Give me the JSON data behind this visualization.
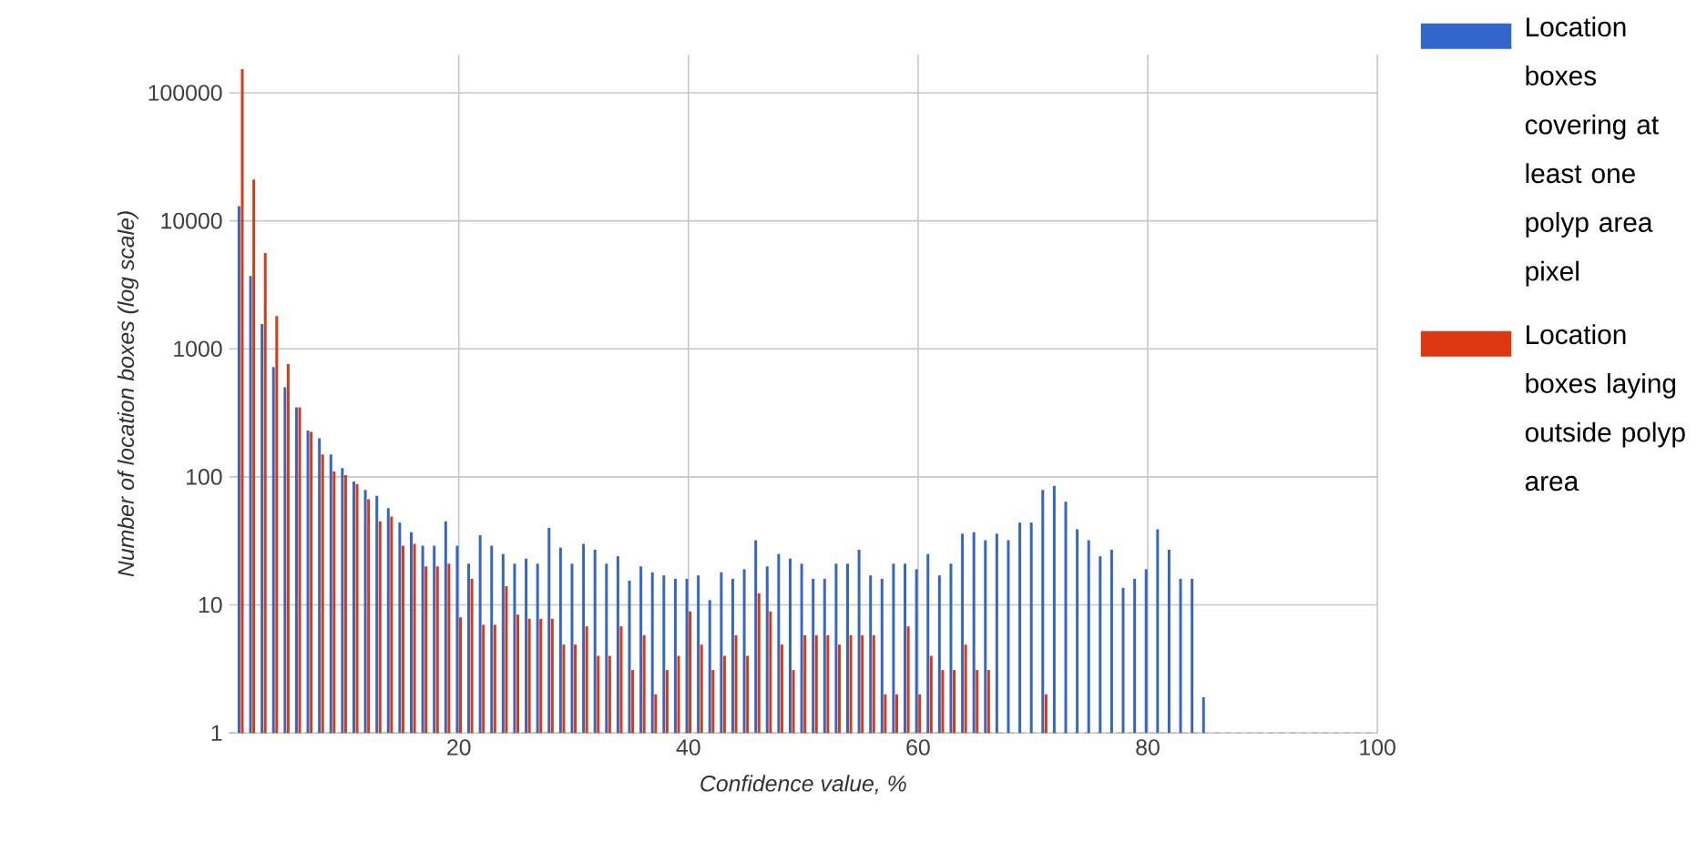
{
  "chart_data": {
    "type": "bar",
    "xlabel": "Confidence value, %",
    "ylabel": "Number of location boxes (log scale)",
    "x": [
      1,
      2,
      3,
      4,
      5,
      6,
      7,
      8,
      9,
      10,
      11,
      12,
      13,
      14,
      15,
      16,
      17,
      18,
      19,
      20,
      21,
      22,
      23,
      24,
      25,
      26,
      27,
      28,
      29,
      30,
      31,
      32,
      33,
      34,
      35,
      36,
      37,
      38,
      39,
      40,
      41,
      42,
      43,
      44,
      45,
      46,
      47,
      48,
      49,
      50,
      51,
      52,
      53,
      54,
      55,
      56,
      57,
      58,
      59,
      60,
      61,
      62,
      63,
      64,
      65,
      66,
      67,
      68,
      69,
      70,
      71,
      72,
      73,
      74,
      75,
      76,
      77,
      78,
      79,
      80,
      81,
      82,
      83,
      84,
      85
    ],
    "series": [
      {
        "name": "Location boxes covering at least one polyp area pixel",
        "color": "#3366cc",
        "values": [
          13000,
          3700,
          1560,
          720,
          500,
          350,
          230,
          200,
          150,
          117,
          92,
          79,
          71,
          57,
          44,
          37,
          29,
          29,
          45,
          29,
          21,
          35,
          29,
          25,
          21,
          23,
          21,
          40,
          28,
          21,
          30,
          27,
          21,
          24,
          15.5,
          20,
          18,
          17,
          16,
          16,
          17,
          10.9,
          18,
          16,
          19,
          32,
          20,
          25,
          23,
          21,
          16,
          16,
          21,
          21,
          27,
          17,
          16,
          21,
          21,
          19,
          25,
          17,
          21,
          36,
          37,
          32,
          36,
          32,
          44,
          44,
          79,
          85,
          64,
          39,
          32,
          24,
          27,
          13.6,
          16,
          19,
          39,
          27,
          16,
          16,
          1.9
        ]
      },
      {
        "name": "Location boxes laying outside polyp area",
        "color": "#dc3912",
        "values": [
          153000,
          21000,
          5600,
          1800,
          760,
          350,
          225,
          150,
          110,
          103,
          88,
          67,
          45,
          49,
          29,
          30,
          20,
          20,
          21,
          8,
          16,
          7,
          7,
          14,
          8.4,
          7.8,
          7.8,
          7.8,
          4.9,
          4.9,
          6.8,
          4,
          4,
          6.8,
          3.1,
          5.8,
          2,
          3.1,
          4,
          8.9,
          4.9,
          3.1,
          4,
          5.8,
          4,
          12.3,
          8.9,
          4.9,
          3.1,
          5.8,
          5.8,
          5.8,
          4.9,
          5.8,
          5.8,
          5.8,
          2,
          2,
          6.8,
          2,
          4,
          3.1,
          3.1,
          4.9,
          3.1,
          3.1,
          null,
          null,
          null,
          null,
          2,
          null,
          null,
          null,
          null,
          null,
          null,
          null,
          null,
          null,
          null,
          null,
          null,
          null,
          null
        ]
      }
    ],
    "xlim": [
      0,
      100
    ],
    "xticks": [
      20,
      40,
      60,
      80,
      100
    ],
    "ylim": [
      1,
      200000
    ],
    "yticks": [
      1,
      10,
      100,
      1000,
      10000,
      100000
    ],
    "log": "y",
    "grid": true,
    "legend": "right"
  }
}
